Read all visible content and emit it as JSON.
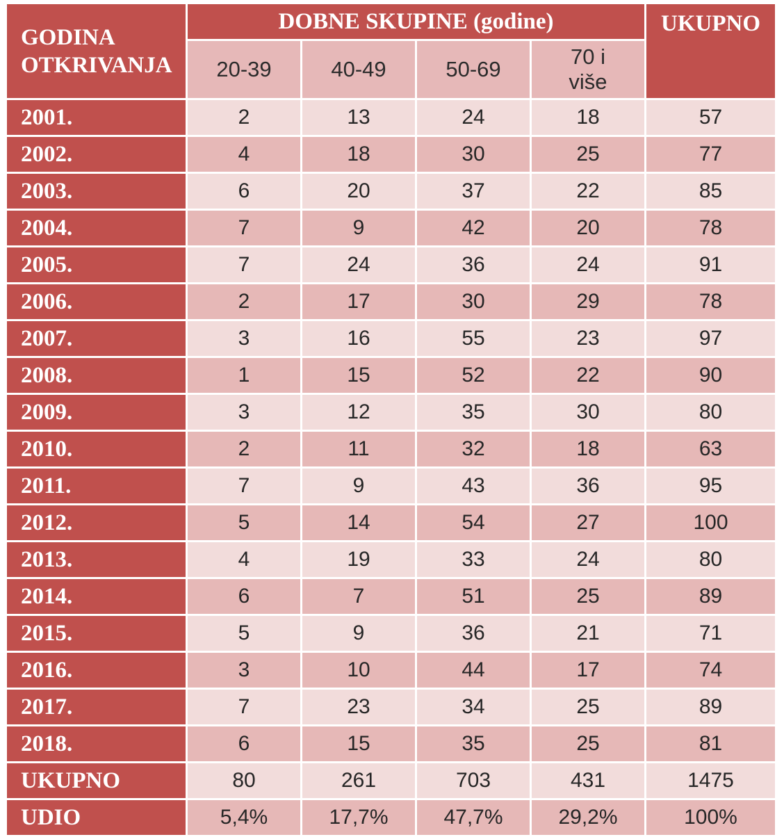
{
  "colors": {
    "header": "#c0504d",
    "header_text": "#ffffff",
    "row_light": "#f2dcdb",
    "row_dark": "#e6b8b7"
  },
  "chart_data": {
    "type": "table",
    "row_header_label": "GODINA OTKRIVANJA",
    "group_header": "DOBNE SKUPINE (godine)",
    "age_groups": [
      "20-39",
      "40-49",
      "50-69",
      "70 i više"
    ],
    "total_header": "UKUPNO",
    "rows": [
      {
        "label": "2001.",
        "values": [
          2,
          13,
          24,
          18
        ],
        "total": 57
      },
      {
        "label": "2002.",
        "values": [
          4,
          18,
          30,
          25
        ],
        "total": 77
      },
      {
        "label": "2003.",
        "values": [
          6,
          20,
          37,
          22
        ],
        "total": 85
      },
      {
        "label": "2004.",
        "values": [
          7,
          9,
          42,
          20
        ],
        "total": 78
      },
      {
        "label": "2005.",
        "values": [
          7,
          24,
          36,
          24
        ],
        "total": 91
      },
      {
        "label": "2006.",
        "values": [
          2,
          17,
          30,
          29
        ],
        "total": 78
      },
      {
        "label": "2007.",
        "values": [
          3,
          16,
          55,
          23
        ],
        "total": 97
      },
      {
        "label": "2008.",
        "values": [
          1,
          15,
          52,
          22
        ],
        "total": 90
      },
      {
        "label": "2009.",
        "values": [
          3,
          12,
          35,
          30
        ],
        "total": 80
      },
      {
        "label": "2010.",
        "values": [
          2,
          11,
          32,
          18
        ],
        "total": 63
      },
      {
        "label": "2011.",
        "values": [
          7,
          9,
          43,
          36
        ],
        "total": 95
      },
      {
        "label": "2012.",
        "values": [
          5,
          14,
          54,
          27
        ],
        "total": 100
      },
      {
        "label": "2013.",
        "values": [
          4,
          19,
          33,
          24
        ],
        "total": 80
      },
      {
        "label": "2014.",
        "values": [
          6,
          7,
          51,
          25
        ],
        "total": 89
      },
      {
        "label": "2015.",
        "values": [
          5,
          9,
          36,
          21
        ],
        "total": 71
      },
      {
        "label": "2016.",
        "values": [
          3,
          10,
          44,
          17
        ],
        "total": 74
      },
      {
        "label": "2017.",
        "values": [
          7,
          23,
          34,
          25
        ],
        "total": 89
      },
      {
        "label": "2018.",
        "values": [
          6,
          15,
          35,
          25
        ],
        "total": 81
      }
    ],
    "summary_rows": [
      {
        "label": "UKUPNO",
        "values": [
          "80",
          "261",
          "703",
          "431"
        ],
        "total": "1475"
      },
      {
        "label": "UDIO",
        "values": [
          "5,4%",
          "17,7%",
          "47,7%",
          "29,2%"
        ],
        "total": "100%"
      }
    ]
  }
}
